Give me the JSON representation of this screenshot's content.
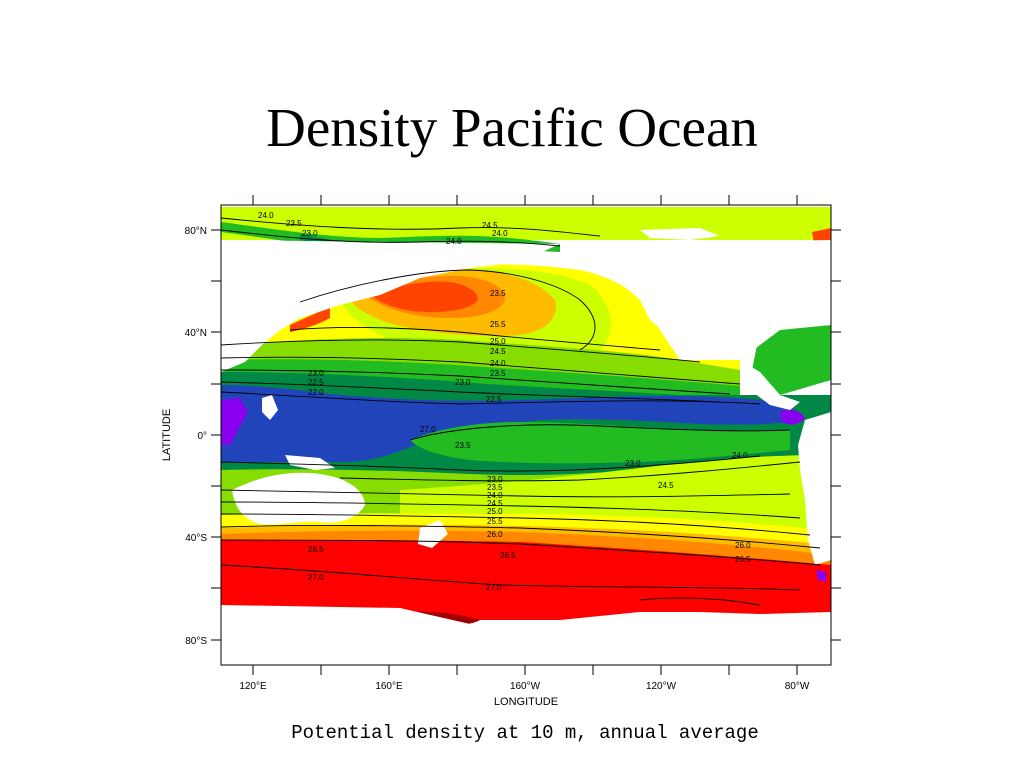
{
  "slide": {
    "title": "Density Pacific Ocean",
    "caption": "Potential density at 10 m, annual average"
  },
  "map": {
    "xlabel": "LONGITUDE",
    "ylabel": "LATITUDE",
    "x_ticks": [
      "120°E",
      "160°E",
      "160°W",
      "120°W",
      "80°W"
    ],
    "y_ticks": [
      "80°N",
      "40°N",
      "0°",
      "40°S",
      "80°S"
    ],
    "colors": {
      "dark_red": "#a00000",
      "red": "#ff0000",
      "orange_red": "#ff4400",
      "orange": "#ff8800",
      "orange_yellow": "#ffbb00",
      "yellow": "#ffff00",
      "yellow_green": "#ccff00",
      "light_green": "#88dd00",
      "green": "#22bb22",
      "dark_green": "#008844",
      "blue": "#2244bb",
      "purple": "#8800ee",
      "land": "#ffffff"
    },
    "contour_labels": [
      "24.0",
      "23.5",
      "23.0",
      "24.5",
      "24.0",
      "24.0",
      "23.5",
      "25.5",
      "25.0",
      "24.5",
      "24.0",
      "23.5",
      "23.0",
      "22.5",
      "22.0",
      "23.0",
      "22.5",
      "27.0",
      "23.5",
      "23.0",
      "24.0",
      "24.5",
      "23.0",
      "23.5",
      "24.0",
      "24.5",
      "25.0",
      "25.5",
      "26.0",
      "26.5",
      "26.5",
      "27.0",
      "27.0",
      "26.0",
      "26.5"
    ]
  }
}
